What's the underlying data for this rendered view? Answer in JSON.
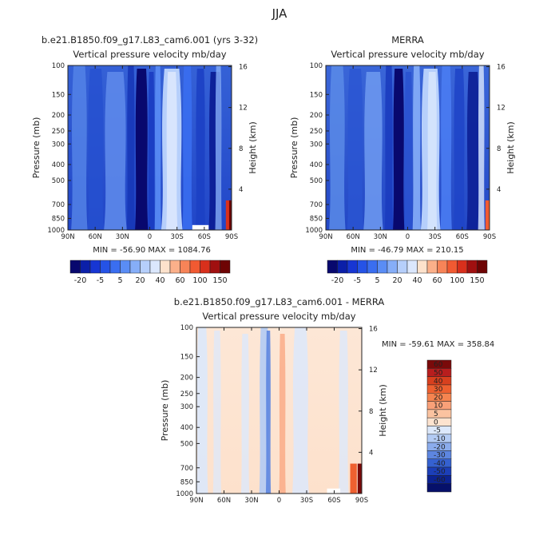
{
  "page_title": "JJA",
  "chart_data": [
    {
      "type": "heatmap",
      "id": "model",
      "title": "b.e21.B1850.f09_g17.L83_cam6.001 (yrs 3-32)",
      "subtitle": "Vertical pressure velocity",
      "units": "mb/day",
      "ylabel": "Pressure (mb)",
      "y2label": "Height (km)",
      "x_ticks": [
        "90N",
        "60N",
        "30N",
        "0",
        "30S",
        "60S",
        "90S"
      ],
      "x_tick_values": [
        90,
        60,
        30,
        0,
        -30,
        -60,
        -90
      ],
      "y_ticks": [
        100,
        150,
        200,
        250,
        300,
        400,
        500,
        700,
        850,
        1000
      ],
      "y2_ticks": [
        16,
        12,
        8,
        4
      ],
      "ylim": [
        100,
        1000
      ],
      "stats": "MIN = -56.90   MAX = 1084.76",
      "colorbar": {
        "labels": [
          "-20",
          "-5",
          "5",
          "20",
          "40",
          "60",
          "100",
          "150"
        ],
        "colors": [
          "#08086e",
          "#0b1fa8",
          "#1736d3",
          "#2553e6",
          "#3a6ef0",
          "#5a8df5",
          "#86aef8",
          "#b6cffb",
          "#dbe7fd",
          "#fde2cc",
          "#fbb08a",
          "#f78458",
          "#f15a32",
          "#d8301c",
          "#a01010",
          "#6e0404"
        ]
      }
    },
    {
      "type": "heatmap",
      "id": "merra",
      "title": "MERRA",
      "subtitle": "Vertical pressure velocity",
      "units": "mb/day",
      "ylabel": "Pressure (mb)",
      "y2label": "Height (km)",
      "x_ticks": [
        "90N",
        "60N",
        "30N",
        "0",
        "30S",
        "60S",
        "90S"
      ],
      "x_tick_values": [
        90,
        60,
        30,
        0,
        -30,
        -60,
        -90
      ],
      "y_ticks": [
        100,
        150,
        200,
        250,
        300,
        400,
        500,
        700,
        850,
        1000
      ],
      "y2_ticks": [
        16,
        12,
        8,
        4
      ],
      "ylim": [
        100,
        1000
      ],
      "stats": "MIN = -46.79   MAX = 210.15",
      "colorbar": {
        "labels": [
          "-20",
          "-5",
          "5",
          "20",
          "40",
          "60",
          "100",
          "150"
        ],
        "colors": [
          "#08086e",
          "#0b1fa8",
          "#1736d3",
          "#2553e6",
          "#3a6ef0",
          "#5a8df5",
          "#86aef8",
          "#b6cffb",
          "#dbe7fd",
          "#fde2cc",
          "#fbb08a",
          "#f78458",
          "#f15a32",
          "#d8301c",
          "#a01010",
          "#6e0404"
        ]
      }
    },
    {
      "type": "heatmap",
      "id": "diff",
      "title": "b.e21.B1850.f09_g17.L83_cam6.001 - MERRA",
      "subtitle": "Vertical pressure velocity",
      "units": "mb/day",
      "ylabel": "Pressure (mb)",
      "y2label": "Height (km)",
      "x_ticks": [
        "90N",
        "60N",
        "30N",
        "0",
        "30S",
        "60S",
        "90S"
      ],
      "x_tick_values": [
        90,
        60,
        30,
        0,
        -30,
        -60,
        -90
      ],
      "y_ticks": [
        100,
        150,
        200,
        250,
        300,
        400,
        500,
        700,
        850,
        1000
      ],
      "y2_ticks": [
        16,
        12,
        8,
        4
      ],
      "ylim": [
        100,
        1000
      ],
      "stats": "MIN = -59.61   MAX = 358.84",
      "colorbar": {
        "labels": [
          "60",
          "50",
          "40",
          "30",
          "20",
          "10",
          "5",
          "0",
          "-5",
          "-10",
          "-20",
          "-30",
          "-40",
          "-50",
          "-60"
        ],
        "colors": [
          "#7a0a0a",
          "#b81e1e",
          "#d8401e",
          "#ee6030",
          "#f58450",
          "#f9a078",
          "#fbc3a0",
          "#fde3cf",
          "#dce8fb",
          "#b3cbf4",
          "#8bacec",
          "#5d86e0",
          "#3561d0",
          "#1c3fb8",
          "#0c2392",
          "#06106a"
        ]
      }
    }
  ]
}
